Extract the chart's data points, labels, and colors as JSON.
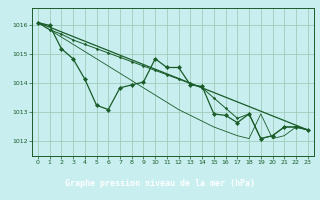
{
  "title": "Graphe pression niveau de la mer (hPa)",
  "bg_color": "#c8eef0",
  "plot_bg": "#c8eef0",
  "grid_color": "#a0ccbb",
  "line_color": "#1a5c28",
  "label_bg": "#2a6b3a",
  "label_fg": "#ffffff",
  "xlim": [
    -0.5,
    23.5
  ],
  "ylim": [
    1011.5,
    1016.6
  ],
  "yticks": [
    1012,
    1013,
    1014,
    1015,
    1016
  ],
  "xticks": [
    0,
    1,
    2,
    3,
    4,
    5,
    6,
    7,
    8,
    9,
    10,
    11,
    12,
    13,
    14,
    15,
    16,
    17,
    18,
    19,
    20,
    21,
    22,
    23
  ],
  "series1_x": [
    0,
    1,
    2,
    3,
    4,
    5,
    6,
    7,
    8,
    9,
    10,
    11,
    12,
    13,
    14,
    15,
    16,
    17,
    18,
    19,
    20,
    21,
    22,
    23
  ],
  "series1_y": [
    1016.1,
    1016.0,
    1015.2,
    1014.85,
    1014.15,
    1013.25,
    1013.1,
    1013.85,
    1013.95,
    1014.05,
    1014.85,
    1014.55,
    1014.55,
    1013.95,
    1013.9,
    1012.95,
    1012.9,
    1012.65,
    1012.95,
    1012.1,
    1012.2,
    1012.5,
    1012.5,
    1012.4
  ],
  "series2_x": [
    0,
    23
  ],
  "series2_y": [
    1016.1,
    1012.4
  ],
  "series3_x": [
    0,
    1,
    2,
    3,
    4,
    5,
    6,
    7,
    8,
    9,
    10,
    11,
    12,
    13,
    14,
    15,
    16,
    17,
    18,
    19,
    20,
    21,
    22,
    23
  ],
  "series3_y": [
    1016.1,
    1015.85,
    1015.7,
    1015.5,
    1015.35,
    1015.2,
    1015.05,
    1014.9,
    1014.75,
    1014.6,
    1014.45,
    1014.3,
    1014.15,
    1014.0,
    1013.85,
    1013.5,
    1013.15,
    1012.8,
    1012.95,
    1012.1,
    1012.2,
    1012.5,
    1012.5,
    1012.4
  ],
  "series4_x": [
    0,
    2,
    3,
    4,
    5,
    6,
    7,
    8,
    9,
    10,
    11,
    12,
    13,
    14,
    15,
    16,
    17,
    18,
    19,
    20,
    21,
    22,
    23
  ],
  "series4_y": [
    1016.1,
    1015.6,
    1015.35,
    1015.1,
    1014.85,
    1014.6,
    1014.35,
    1014.1,
    1013.85,
    1013.6,
    1013.35,
    1013.1,
    1012.9,
    1012.7,
    1012.5,
    1012.35,
    1012.2,
    1012.1,
    1012.95,
    1012.1,
    1012.2,
    1012.5,
    1012.4
  ]
}
